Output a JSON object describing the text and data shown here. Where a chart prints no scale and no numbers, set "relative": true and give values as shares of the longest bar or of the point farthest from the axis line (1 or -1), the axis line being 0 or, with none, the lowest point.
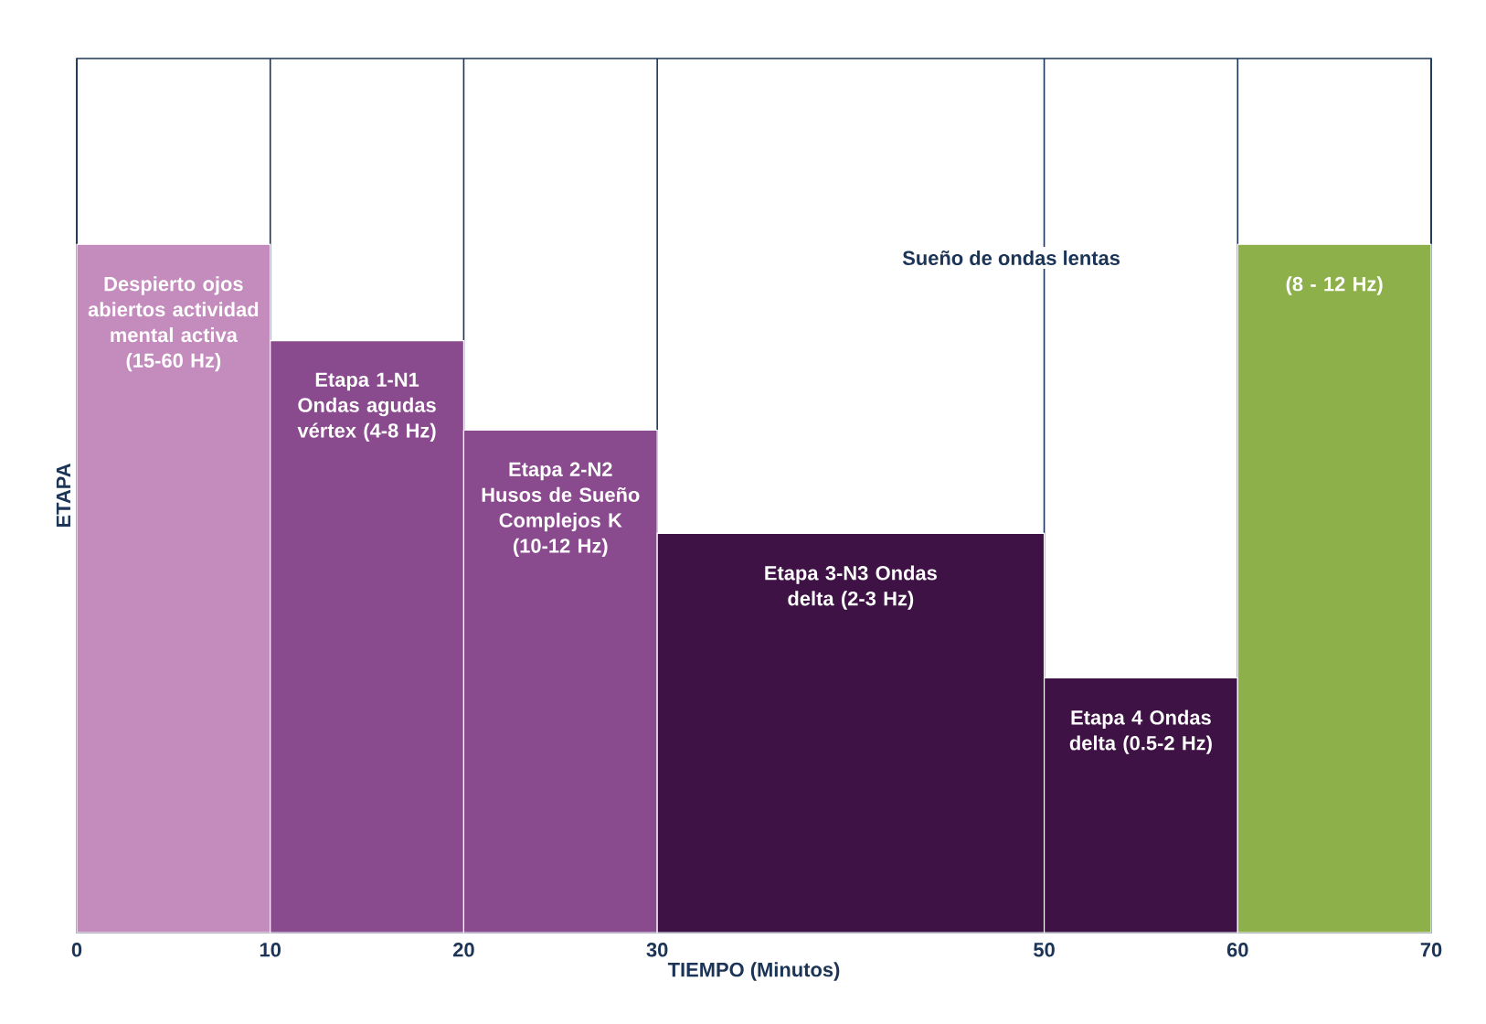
{
  "chart_data": {
    "type": "bar",
    "relative": true,
    "xlabel": "TIEMPO (Minutos)",
    "ylabel": "ETAPA",
    "x": [
      5,
      15,
      25,
      40,
      55,
      65
    ],
    "values": [
      1,
      0.86,
      0.73,
      0.58,
      0.37,
      1
    ],
    "colors": [
      "#c48bbd",
      "#8a4a8e",
      "#8a4a8e",
      "#3f1245",
      "#3f1245",
      "#8db04a"
    ],
    "xlim": [
      0,
      70
    ],
    "xticks": [
      0,
      10,
      20,
      30,
      50,
      60,
      70
    ],
    "grid": "x",
    "annotations": [
      "Despierto ojos abiertos actividad mental activa (15-60 Hz)",
      "Etapa 1-N1 Ondas agudas vértex (4-8 Hz)",
      "Etapa 2-N2 Husos de Sueño Complejos K (10-12 Hz)",
      "Etapa 3-N3 Ondas delta (2-3 Hz)",
      "Etapa 4 Ondas delta (0.5-2 Hz)",
      "Sueño de ondas lentas",
      "(8 - 12 Hz)"
    ]
  }
}
